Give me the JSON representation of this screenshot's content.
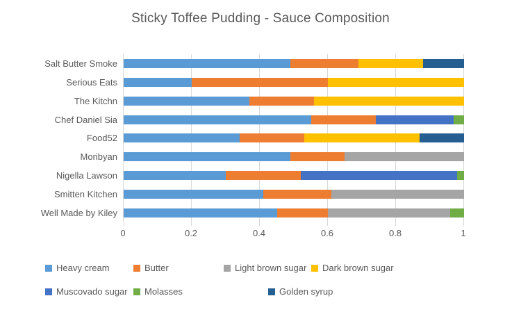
{
  "chart_data": {
    "type": "bar",
    "stacked": true,
    "orientation": "horizontal",
    "title": "Sticky Toffee Pudding - Sauce Composition",
    "xlabel": "",
    "ylabel": "",
    "xlim": [
      0,
      1
    ],
    "xticks": [
      0,
      0.2,
      0.4,
      0.6,
      0.8,
      1
    ],
    "xtick_labels": [
      "0",
      "0.2",
      "0.4",
      "0.6",
      "0.8",
      "1"
    ],
    "grid": "vertical-major-gridlines",
    "legend_position": "bottom",
    "categories": [
      "Salt Butter Smoke",
      "Serious Eats",
      "The Kitchn",
      "Chef Daniel Sia",
      "Food52",
      "Moribyan",
      "Nigella Lawson",
      "Smitten Kitchen",
      "Well Made by Kiley"
    ],
    "series": [
      {
        "name": "Heavy cream",
        "color": "#5B9BD5",
        "values": [
          0.49,
          0.2,
          0.37,
          0.55,
          0.34,
          0.49,
          0.3,
          0.41,
          0.45
        ]
      },
      {
        "name": "Butter",
        "color": "#ED7D31",
        "values": [
          0.2,
          0.4,
          0.19,
          0.19,
          0.19,
          0.16,
          0.22,
          0.2,
          0.15
        ]
      },
      {
        "name": "Light brown sugar",
        "color": "#A5A5A5",
        "values": [
          0,
          0,
          0,
          0,
          0,
          0.35,
          0,
          0.39,
          0.36
        ]
      },
      {
        "name": "Dark brown sugar",
        "color": "#FFC000",
        "values": [
          0.19,
          0.4,
          0.44,
          0,
          0.34,
          0,
          0,
          0,
          0
        ]
      },
      {
        "name": "Muscovado sugar",
        "color": "#4472C4",
        "values": [
          0,
          0,
          0,
          0.23,
          0,
          0,
          0.46,
          0,
          0
        ]
      },
      {
        "name": "Molasses",
        "color": "#70AD47",
        "values": [
          0,
          0,
          0,
          0.03,
          0,
          0,
          0.02,
          0,
          0.04
        ]
      },
      {
        "name": "Golden syrup",
        "color": "#255E91",
        "values": [
          0.12,
          0,
          0,
          0,
          0.13,
          0,
          0,
          0,
          0
        ]
      }
    ],
    "legend_rows": [
      [
        "Heavy cream",
        "Butter",
        "Light brown sugar",
        "Dark brown sugar"
      ],
      [
        "Muscovado sugar",
        "Molasses",
        "Golden syrup"
      ]
    ],
    "colors": {
      "text": "#595959",
      "gridline": "#D9D9D9",
      "axis_line": "#D9D9D9",
      "background": "#FFFFFF"
    }
  }
}
